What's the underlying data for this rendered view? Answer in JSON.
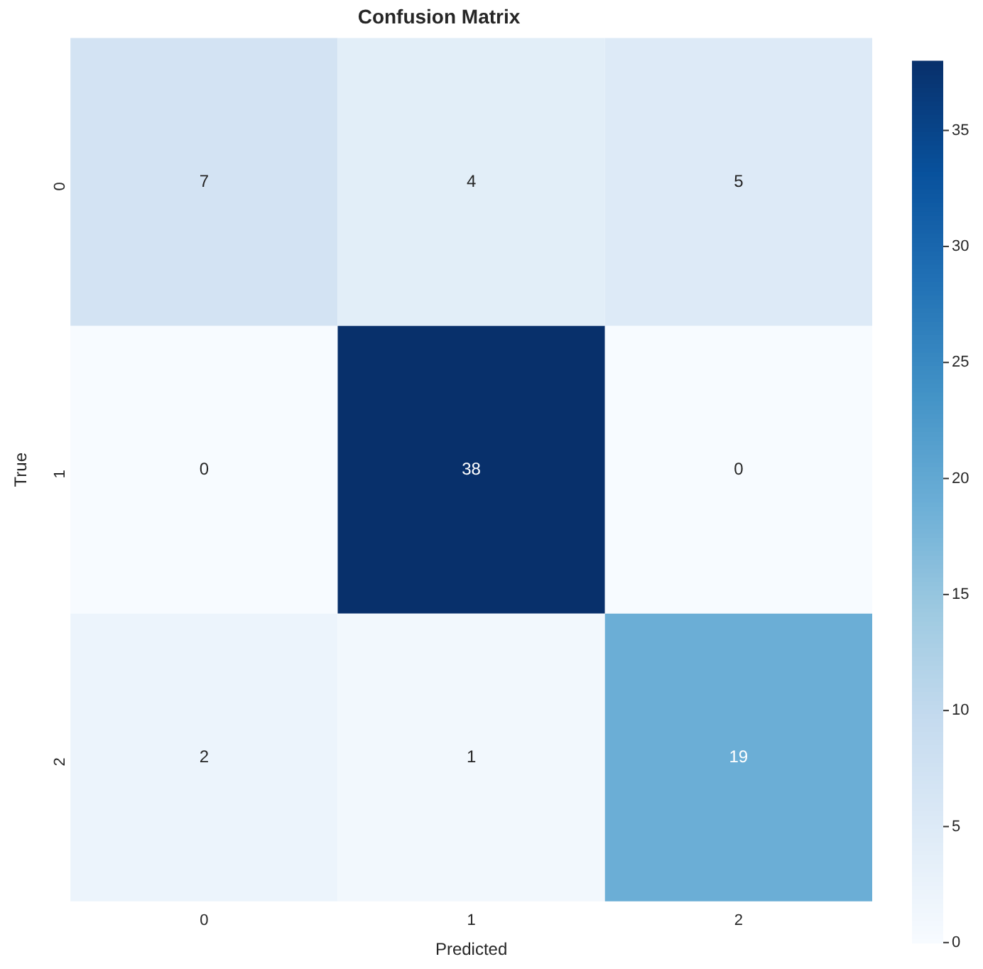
{
  "chart_data": {
    "type": "heatmap",
    "title": "Confusion Matrix",
    "xlabel": "Predicted",
    "ylabel": "True",
    "categories": [
      "0",
      "1",
      "2"
    ],
    "y_categories": [
      "0",
      "1",
      "2"
    ],
    "cells": [
      [
        7,
        4,
        5
      ],
      [
        0,
        38,
        0
      ],
      [
        2,
        1,
        19
      ]
    ],
    "data_labels": true,
    "clim": [
      0,
      38
    ],
    "cticks": [
      0,
      5,
      10,
      15,
      20,
      25,
      30,
      35
    ]
  }
}
